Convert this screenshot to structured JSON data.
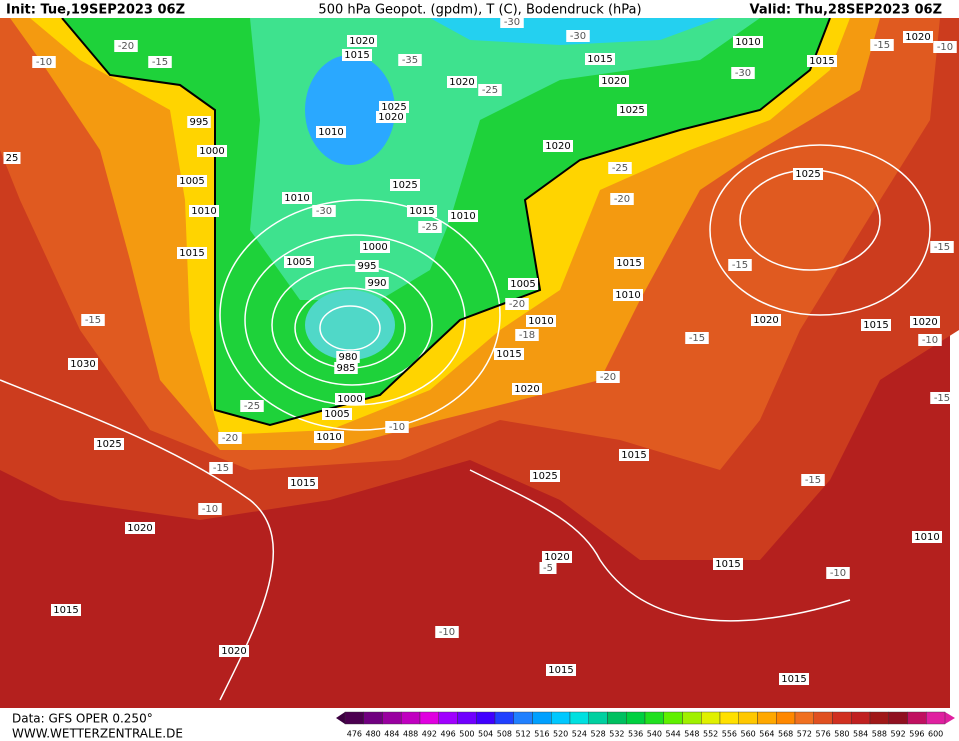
{
  "header": {
    "init": "Init: Tue,19SEP2023 06Z",
    "title": "500 hPa Geopot. (gpdm), T (C), Bodendruck (hPa)",
    "valid": "Valid: Thu,28SEP2023 06Z"
  },
  "map": {
    "isobar_labels": [
      "1020",
      "1015",
      "1010",
      "1015",
      "1015",
      "1020",
      "1020",
      "1020",
      "1025",
      "1025",
      "1020",
      "995",
      "1000",
      "1010",
      "1020",
      "1005",
      "1010",
      "1025",
      "1025",
      "1010",
      "1015",
      "1010",
      "1015",
      "1000",
      "1005",
      "995",
      "990",
      "1005",
      "1015",
      "1010",
      "1010",
      "1020",
      "1015",
      "1020",
      "1015",
      "980",
      "985",
      "1030",
      "1020",
      "1000",
      "1005",
      "1010",
      "1025",
      "1015",
      "1025",
      "1015",
      "1020",
      "1010",
      "1020",
      "1015",
      "1015",
      "1020",
      "1015",
      "1015",
      "25"
    ],
    "temperature_labels": [
      "-20",
      "-15",
      "-10",
      "-30",
      "-30",
      "-35",
      "-25",
      "-30",
      "-15",
      "-10",
      "-25",
      "-20",
      "-30",
      "-25",
      "-15",
      "-15",
      "-20",
      "-15",
      "-18",
      "-15",
      "-10",
      "-20",
      "-15",
      "-25",
      "-20",
      "-10",
      "-15",
      "-10",
      "-15",
      "-10",
      "-10",
      "-5"
    ]
  },
  "colorbar": {
    "levels": [
      476,
      480,
      484,
      488,
      492,
      496,
      500,
      504,
      508,
      512,
      516,
      520,
      524,
      528,
      532,
      536,
      540,
      544,
      548,
      552,
      556,
      560,
      564,
      568,
      572,
      576,
      580,
      584,
      588,
      592,
      596,
      600
    ],
    "colors": [
      "#4b0050",
      "#700080",
      "#9900a0",
      "#c000c0",
      "#e000e0",
      "#a000ff",
      "#7000ff",
      "#4000ff",
      "#2040ff",
      "#2080ff",
      "#00a0ff",
      "#00c8ff",
      "#00e0e0",
      "#00d0a0",
      "#00c060",
      "#00d040",
      "#20e020",
      "#60f000",
      "#a0f000",
      "#e0f000",
      "#ffe000",
      "#ffc800",
      "#ffa800",
      "#ff8800",
      "#f07020",
      "#e05020",
      "#d03020",
      "#c02020",
      "#a01818",
      "#901020",
      "#c01060",
      "#e020a0"
    ]
  },
  "footer": {
    "data": "Data: GFS OPER 0.250°",
    "site": "WWW.WETTERZENTRALE.DE"
  }
}
